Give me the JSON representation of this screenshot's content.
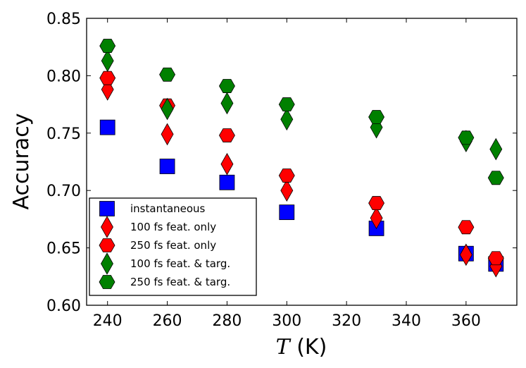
{
  "chart_data": {
    "type": "scatter",
    "title": "",
    "xlabel_symbol": "T",
    "xlabel_unit": " (K)",
    "ylabel": "Accuracy",
    "xlim": [
      233,
      377
    ],
    "ylim": [
      0.6,
      0.85
    ],
    "xticks": [
      240,
      260,
      280,
      300,
      320,
      340,
      360
    ],
    "yticks": [
      0.6,
      0.65,
      0.7,
      0.75,
      0.8,
      0.85
    ],
    "ytick_labels": [
      "0.60",
      "0.65",
      "0.70",
      "0.75",
      "0.80",
      "0.85"
    ],
    "grid": false,
    "legend_position": "lower-left",
    "series": [
      {
        "name": "instantaneous",
        "marker": "square",
        "color": "#0000ff",
        "x": [
          240,
          260,
          280,
          300,
          330,
          360,
          370
        ],
        "y": [
          0.755,
          0.721,
          0.707,
          0.681,
          0.667,
          0.645,
          0.636
        ]
      },
      {
        "name": "100 fs feat. only",
        "marker": "thin_diamond",
        "color": "#ff0000",
        "x": [
          240,
          260,
          280,
          300,
          330,
          360,
          370
        ],
        "y": [
          0.788,
          0.749,
          0.723,
          0.7,
          0.676,
          0.644,
          0.634
        ]
      },
      {
        "name": "250 fs feat. only",
        "marker": "hexagon",
        "color": "#ff0000",
        "x": [
          240,
          260,
          280,
          300,
          330,
          360,
          370
        ],
        "y": [
          0.798,
          0.774,
          0.748,
          0.713,
          0.689,
          0.668,
          0.641
        ]
      },
      {
        "name": "100 fs feat. & targ.",
        "marker": "thin_diamond",
        "color": "#008000",
        "x": [
          240,
          260,
          280,
          300,
          330,
          360,
          370
        ],
        "y": [
          0.813,
          0.771,
          0.776,
          0.762,
          0.755,
          0.743,
          0.736
        ]
      },
      {
        "name": "250 fs feat. & targ.",
        "marker": "hexagon",
        "color": "#008000",
        "x": [
          240,
          260,
          280,
          300,
          330,
          360,
          370
        ],
        "y": [
          0.826,
          0.801,
          0.791,
          0.775,
          0.764,
          0.746,
          0.711
        ]
      }
    ]
  }
}
